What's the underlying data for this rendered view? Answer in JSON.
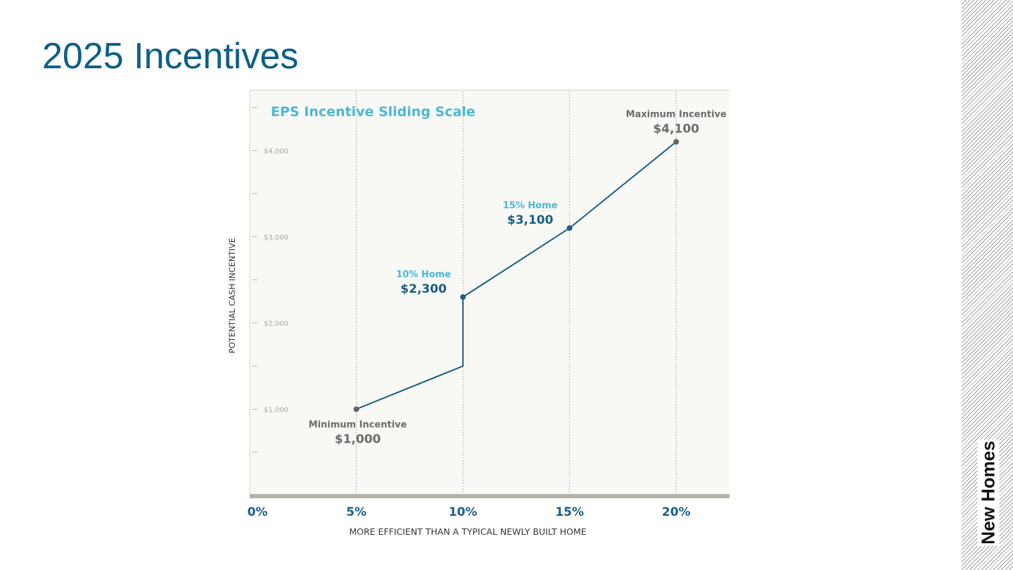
{
  "slide": {
    "title": "2025 Incentives",
    "side_label": "New Homes"
  },
  "colors": {
    "title": "#0d5f86",
    "chart_line": "#1b5e83",
    "chart_title": "#4bb8d6",
    "highlight_label": "#4bb8d6",
    "muted_label": "#6b6b6b",
    "plot_background": "#f8f8f5",
    "axis_bar": "#b5b2a8"
  },
  "chart_data": {
    "type": "line",
    "title": "EPS Incentive Sliding Scale",
    "xlabel": "MORE EFFICIENT THAN A TYPICAL NEWLY BUILT HOME",
    "ylabel": "POTENTIAL CASH INCENTIVE",
    "x_ticks": [
      "0%",
      "5%",
      "10%",
      "15%",
      "20%"
    ],
    "x_tick_values": [
      0,
      5,
      10,
      15,
      20
    ],
    "y_ticks": [
      "$1,000",
      "$2,000",
      "$3,000",
      "$4,000"
    ],
    "y_tick_values": [
      1000,
      2000,
      3000,
      4000
    ],
    "xlim": [
      0,
      22.5
    ],
    "ylim": [
      0,
      4700
    ],
    "grid": "vertical-dotted",
    "series": [
      {
        "points": [
          {
            "x": 5,
            "y": 1000
          },
          {
            "x": 10,
            "y": 1500
          },
          {
            "x": 10,
            "y": 2300
          },
          {
            "x": 15,
            "y": 3100
          },
          {
            "x": 20,
            "y": 4100
          }
        ]
      }
    ],
    "markers": [
      {
        "x": 5,
        "y": 1000,
        "style": "muted"
      },
      {
        "x": 10,
        "y": 2300,
        "style": "highlight"
      },
      {
        "x": 15,
        "y": 3100,
        "style": "highlight"
      },
      {
        "x": 20,
        "y": 4100,
        "style": "muted"
      }
    ],
    "annotations": [
      {
        "x": 5,
        "y": 1000,
        "label": "Minimum Incentive",
        "value": "$1,000",
        "style": "muted",
        "position": "below"
      },
      {
        "x": 10,
        "y": 2300,
        "label": "10% Home",
        "value": "$2,300",
        "style": "highlight",
        "position": "above-left"
      },
      {
        "x": 15,
        "y": 3100,
        "label": "15% Home",
        "value": "$3,100",
        "style": "highlight",
        "position": "above-left"
      },
      {
        "x": 20,
        "y": 4100,
        "label": "Maximum Incentive",
        "value": "$4,100",
        "style": "muted",
        "position": "above"
      }
    ]
  }
}
